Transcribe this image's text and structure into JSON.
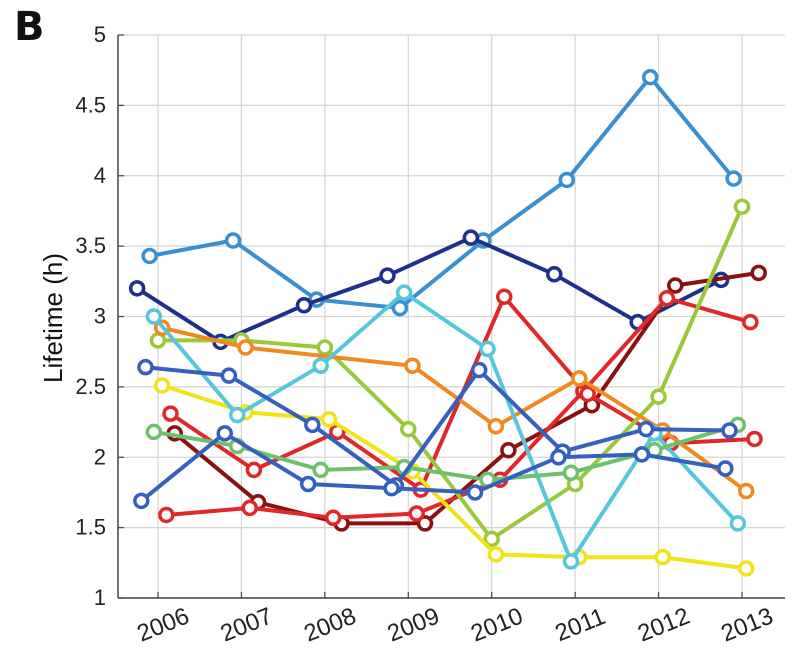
{
  "panel_label": "B",
  "chart_data": {
    "type": "line",
    "title": "",
    "xlabel": "",
    "ylabel": "Lifetime (h)",
    "ylim": [
      1,
      5
    ],
    "grid": true,
    "categories": [
      "2006",
      "2007",
      "2008",
      "2009",
      "2010",
      "2011",
      "2012",
      "2013"
    ],
    "yticks": [
      "1",
      "1.5",
      "2",
      "2.5",
      "3",
      "3.5",
      "4",
      "4.5",
      "5"
    ],
    "series": [
      {
        "name": "series-1",
        "color": "#3b8fd0",
        "x": [
          2005.9,
          2006.9,
          2007.9,
          2008.9,
          2009.9,
          2010.9,
          2011.9,
          2012.9
        ],
        "y": [
          3.43,
          3.54,
          3.12,
          3.06,
          3.54,
          3.97,
          4.7,
          3.98
        ]
      },
      {
        "name": "series-2",
        "color": "#1e2f8c",
        "x": [
          2005.75,
          2006.75,
          2007.75,
          2008.75,
          2009.75,
          2010.75,
          2011.75,
          2012.75
        ],
        "y": [
          3.2,
          2.82,
          3.08,
          3.29,
          3.56,
          3.3,
          2.96,
          3.26
        ]
      },
      {
        "name": "series-3",
        "color": "#8b1010",
        "x": [
          2006.2,
          2007.2,
          2008.2,
          2009.2,
          2010.2,
          2011.2,
          2012.2,
          2013.2
        ],
        "y": [
          2.17,
          1.68,
          1.53,
          1.53,
          2.05,
          2.37,
          3.22,
          3.31
        ]
      },
      {
        "name": "series-4",
        "color": "#e02828",
        "x": [
          2006.1,
          2007.1,
          2008.1,
          2009.1,
          2010.1,
          2011.1,
          2012.1,
          2013.1
        ],
        "y": [
          1.59,
          1.64,
          1.57,
          1.6,
          1.84,
          2.47,
          3.13,
          2.96
        ]
      },
      {
        "name": "series-5",
        "color": "#e02828",
        "x": [
          2006.15,
          2007.15,
          2008.15,
          2009.15,
          2010.15,
          2011.15,
          2012.15,
          2013.15
        ],
        "y": [
          2.31,
          1.91,
          2.18,
          1.77,
          3.14,
          2.45,
          2.1,
          2.13
        ]
      },
      {
        "name": "series-6",
        "color": "#9ac83a",
        "x": [
          2006.0,
          2007.0,
          2008.0,
          2009.0,
          2010.0,
          2011.0,
          2012.0,
          2013.0
        ],
        "y": [
          2.83,
          2.83,
          2.78,
          2.2,
          1.42,
          1.81,
          2.43,
          3.78
        ]
      },
      {
        "name": "series-7",
        "color": "#f08a20",
        "x": [
          2006.05,
          2007.05,
          2009.05,
          2010.05,
          2011.05,
          2012.05,
          2013.05
        ],
        "y": [
          2.92,
          2.78,
          2.65,
          2.22,
          2.56,
          2.19,
          1.76
        ]
      },
      {
        "name": "series-8",
        "color": "#f2e216",
        "x": [
          2006.05,
          2007.05,
          2008.05,
          2009.05,
          2010.05,
          2011.05,
          2012.05,
          2013.05
        ],
        "y": [
          2.51,
          2.32,
          2.27,
          1.9,
          1.31,
          1.29,
          1.29,
          1.21
        ]
      },
      {
        "name": "series-9",
        "color": "#56c6dc",
        "x": [
          2005.95,
          2006.95,
          2007.95,
          2008.95,
          2009.95,
          2010.95,
          2011.95,
          2012.95
        ],
        "y": [
          3.0,
          2.3,
          2.65,
          3.17,
          2.77,
          1.26,
          2.17,
          1.53
        ]
      },
      {
        "name": "series-10",
        "color": "#6cc26c",
        "x": [
          2005.95,
          2006.95,
          2007.95,
          2008.95,
          2009.95,
          2010.95,
          2011.95,
          2012.95
        ],
        "y": [
          2.18,
          2.08,
          1.91,
          1.93,
          1.84,
          1.89,
          2.05,
          2.23
        ]
      },
      {
        "name": "series-11",
        "color": "#3560c0",
        "x": [
          2005.85,
          2006.85,
          2007.85,
          2008.85,
          2009.85,
          2010.85,
          2011.85,
          2012.85
        ],
        "y": [
          2.64,
          2.58,
          2.23,
          1.8,
          2.62,
          2.04,
          2.2,
          2.19
        ]
      },
      {
        "name": "series-12",
        "color": "#3560c0",
        "x": [
          2005.8,
          2006.8,
          2007.8,
          2008.8,
          2009.8,
          2010.8,
          2011.8,
          2012.8
        ],
        "y": [
          1.69,
          2.17,
          1.81,
          1.78,
          1.75,
          2.0,
          2.02,
          1.92
        ]
      }
    ]
  }
}
